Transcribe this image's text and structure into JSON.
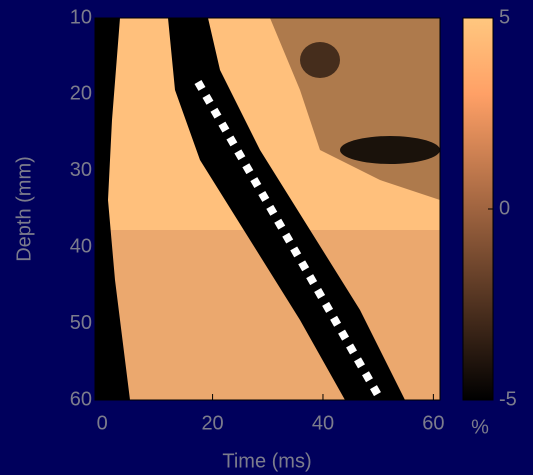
{
  "chart_data": {
    "type": "heatmap",
    "xlabel": "Time (ms)",
    "ylabel": "Depth (mm)",
    "xlim": [
      -1.3,
      61.2
    ],
    "xticks": [
      0,
      20,
      40,
      60
    ],
    "ylim": [
      60,
      10
    ],
    "yticks": [
      10,
      20,
      30,
      40,
      50,
      60
    ],
    "clim": [
      -5,
      5
    ],
    "cticks": [
      -5,
      0,
      5
    ],
    "colorbar_label": "%"
  }
}
